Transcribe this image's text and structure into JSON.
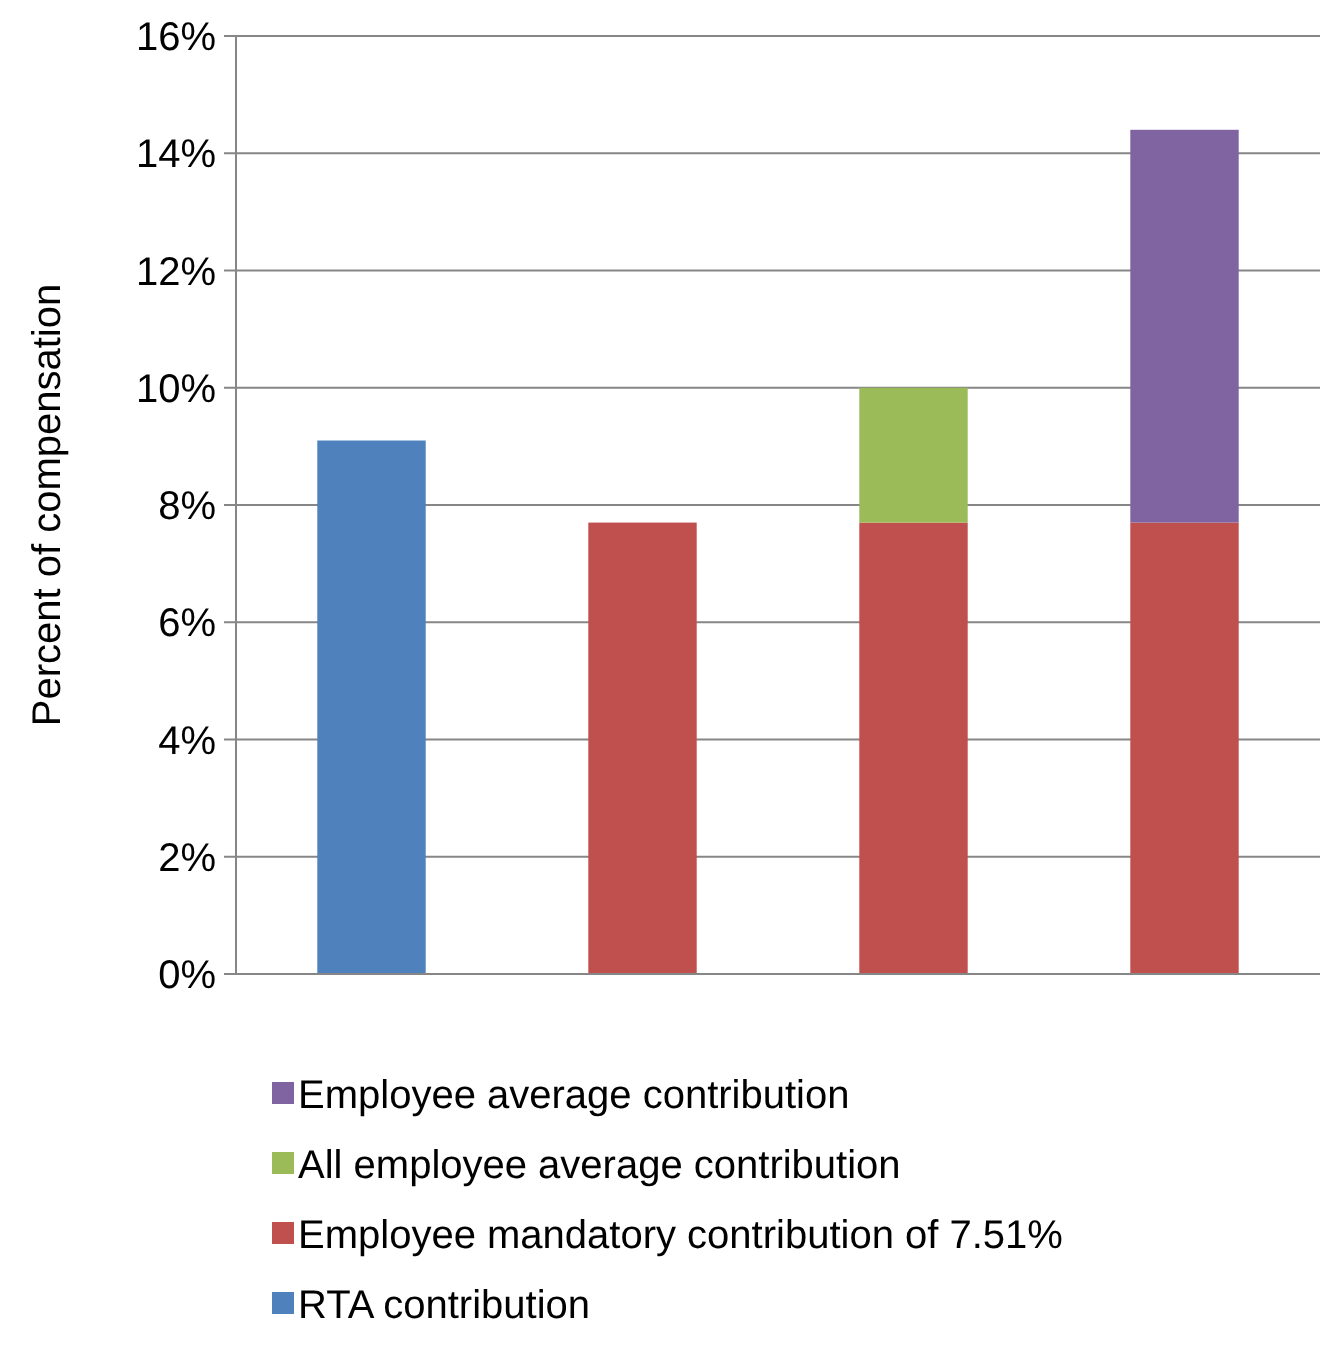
{
  "chart_data": {
    "type": "bar",
    "stacked": true,
    "ylabel": "Percent of compensation",
    "categories": [
      null,
      null,
      null,
      null
    ],
    "series": [
      {
        "name": "RTA contribution",
        "color": "#4f81bd",
        "values": [
          9.1,
          null,
          null,
          null
        ]
      },
      {
        "name": "Employee mandatory contribution of 7.51%",
        "color": "#c0504d",
        "values": [
          null,
          7.7,
          7.7,
          7.7
        ]
      },
      {
        "name": "All employee average contribution",
        "color": "#9bbb59",
        "values": [
          null,
          null,
          2.3,
          null
        ]
      },
      {
        "name": "Employee average contribution",
        "color": "#8064a2",
        "values": [
          null,
          null,
          null,
          6.7
        ]
      }
    ],
    "ylim": [
      0,
      16
    ],
    "yticks": [
      {
        "value": 0,
        "label": "0%"
      },
      {
        "value": 2,
        "label": "2%"
      },
      {
        "value": 4,
        "label": "4%"
      },
      {
        "value": 6,
        "label": "6%"
      },
      {
        "value": 8,
        "label": "8%"
      },
      {
        "value": 10,
        "label": "10%"
      },
      {
        "value": 12,
        "label": "12%"
      },
      {
        "value": 14,
        "label": "14%"
      },
      {
        "value": 16,
        "label": "16%"
      }
    ],
    "grid": "y",
    "legend": "bottom"
  }
}
